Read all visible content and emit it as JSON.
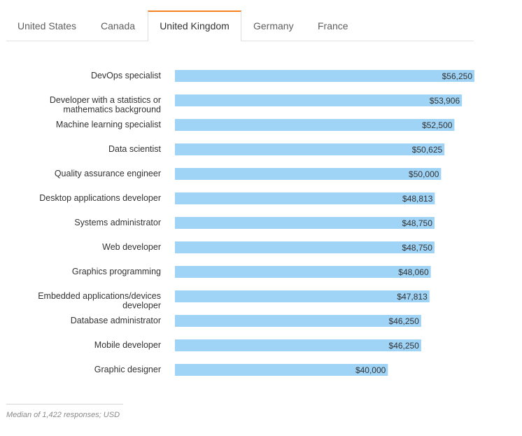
{
  "tabs": [
    {
      "label": "United States",
      "active": false
    },
    {
      "label": "Canada",
      "active": false
    },
    {
      "label": "United Kingdom",
      "active": true
    },
    {
      "label": "Germany",
      "active": false
    },
    {
      "label": "France",
      "active": false
    }
  ],
  "chart_data": {
    "type": "bar",
    "orientation": "horizontal",
    "title": "",
    "xlabel": "",
    "ylabel": "",
    "currency": "USD",
    "xlim": [
      0,
      56250
    ],
    "categories": [
      [
        "DevOps specialist"
      ],
      [
        "Developer with a statistics or",
        "mathematics background"
      ],
      [
        "Machine learning specialist"
      ],
      [
        "Data scientist"
      ],
      [
        "Quality assurance engineer"
      ],
      [
        "Desktop applications developer"
      ],
      [
        "Systems administrator"
      ],
      [
        "Web developer"
      ],
      [
        "Graphics programming"
      ],
      [
        "Embedded applications/devices",
        "developer"
      ],
      [
        "Database administrator"
      ],
      [
        "Mobile developer"
      ],
      [
        "Graphic designer"
      ]
    ],
    "values": [
      56250,
      53906,
      52500,
      50625,
      50000,
      48813,
      48750,
      48750,
      48060,
      47813,
      46250,
      46250,
      40000
    ],
    "value_labels": [
      "$56,250",
      "$53,906",
      "$52,500",
      "$50,625",
      "$50,000",
      "$48,813",
      "$48,750",
      "$48,750",
      "$48,060",
      "$47,813",
      "$46,250",
      "$46,250",
      "$40,000"
    ],
    "bar_color": "#9fd4f7"
  },
  "footnote": "Median of 1,422 responses; USD"
}
